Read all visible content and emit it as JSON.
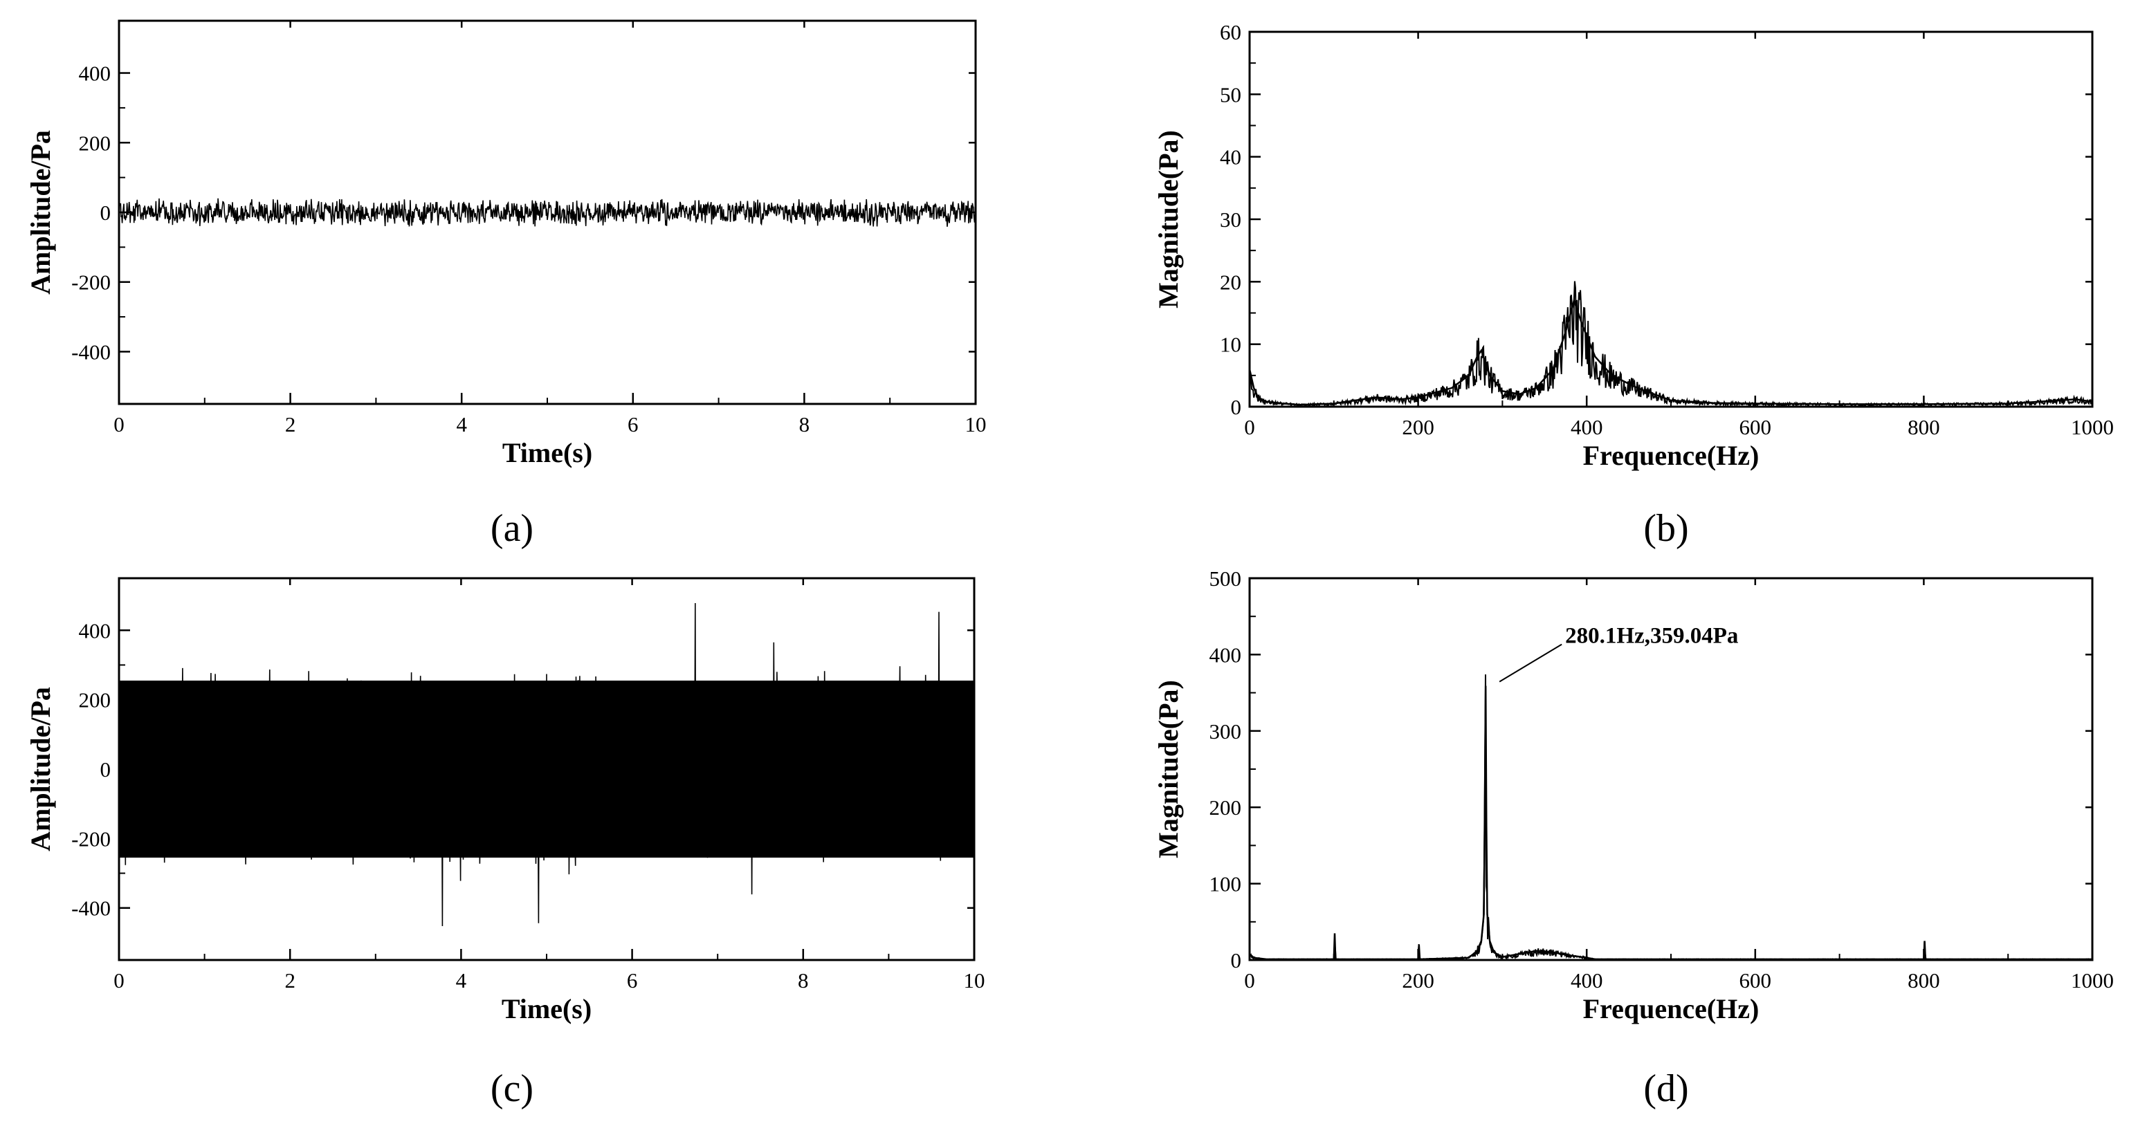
{
  "chart_data": [
    {
      "panel": "a",
      "type": "line",
      "title": "",
      "caption": "(a)",
      "xlabel": "Time(s)",
      "ylabel": "Amplitude/Pa",
      "xlim": [
        0,
        10
      ],
      "ylim": [
        -550,
        550
      ],
      "xticks": [
        "0",
        "2",
        "4",
        "6",
        "8",
        "10"
      ],
      "yticks": [
        "-400",
        "-200",
        "0",
        "200",
        "400"
      ],
      "grid": false,
      "legend": "none",
      "series": [
        {
          "color": "#000000",
          "envelope": [
            -45,
            45
          ],
          "x": [
            0,
            10
          ],
          "y": [
            0,
            0
          ]
        }
      ]
    },
    {
      "panel": "b",
      "type": "line",
      "title": "",
      "caption": "(b)",
      "xlabel": "Frequence(Hz)",
      "ylabel": "Magnitude(Pa)",
      "xlim": [
        0,
        1000
      ],
      "ylim": [
        0,
        60
      ],
      "xticks": [
        "0",
        "200",
        "400",
        "600",
        "800",
        "1000"
      ],
      "yticks": [
        "0",
        "10",
        "20",
        "30",
        "40",
        "50",
        "60"
      ],
      "grid": false,
      "legend": "none",
      "series": [
        {
          "color": "#000000",
          "x": [
            0,
            5,
            10,
            20,
            40,
            60,
            100,
            150,
            180,
            200,
            240,
            260,
            270,
            275,
            285,
            300,
            320,
            340,
            360,
            375,
            385,
            395,
            410,
            430,
            460,
            480,
            500,
            550,
            600,
            700,
            800,
            900,
            960,
            980,
            1000
          ],
          "y": [
            6,
            3,
            1.5,
            0.8,
            0.5,
            0.3,
            0.5,
            1.5,
            1.2,
            1.5,
            3,
            5,
            8,
            9,
            5,
            2.5,
            2,
            3,
            6,
            12,
            17,
            13,
            8,
            5,
            3,
            2,
            1,
            0.6,
            0.5,
            0.4,
            0.4,
            0.5,
            1,
            1.2,
            0.8
          ]
        }
      ]
    },
    {
      "panel": "c",
      "type": "line",
      "title": "",
      "caption": "(c)",
      "xlabel": "Time(s)",
      "ylabel": "Amplitude/Pa",
      "xlim": [
        0,
        10
      ],
      "ylim": [
        -550,
        550
      ],
      "xticks": [
        "0",
        "2",
        "4",
        "6",
        "8",
        "10"
      ],
      "yticks": [
        "-400",
        "-200",
        "0",
        "200",
        "400"
      ],
      "grid": false,
      "legend": "none",
      "series": [
        {
          "color": "#000000",
          "envelope": [
            -300,
            300
          ],
          "peaks": [
            -430,
            520
          ],
          "x": [
            0,
            10
          ],
          "y": [
            0,
            0
          ]
        }
      ]
    },
    {
      "panel": "d",
      "type": "line",
      "title": "",
      "caption": "(d)",
      "xlabel": "Frequence(Hz)",
      "ylabel": "Magnitude(Pa)",
      "xlim": [
        0,
        1000
      ],
      "ylim": [
        0,
        500
      ],
      "xticks": [
        "0",
        "200",
        "400",
        "600",
        "800",
        "1000"
      ],
      "yticks": [
        "0",
        "100",
        "200",
        "300",
        "400",
        "500"
      ],
      "grid": false,
      "legend": "none",
      "series": [
        {
          "color": "#000000",
          "x": [
            0,
            5,
            20,
            100,
            101,
            102,
            200,
            201,
            202,
            260,
            270,
            275,
            278,
            279,
            280.1,
            281,
            282,
            285,
            290,
            300,
            320,
            340,
            360,
            380,
            400,
            410,
            500,
            700,
            800,
            801,
            802,
            900,
            1000
          ],
          "y": [
            8,
            3,
            1,
            1,
            35,
            1,
            1,
            20,
            1,
            3,
            12,
            25,
            60,
            175,
            359.04,
            175,
            60,
            25,
            10,
            4,
            8,
            12,
            10,
            6,
            3,
            1,
            1,
            1,
            1,
            25,
            1,
            1,
            1
          ]
        }
      ],
      "annotations": [
        {
          "text": "280.1Hz,359.04Pa",
          "x": 280.1,
          "y": 359.04
        }
      ]
    }
  ]
}
